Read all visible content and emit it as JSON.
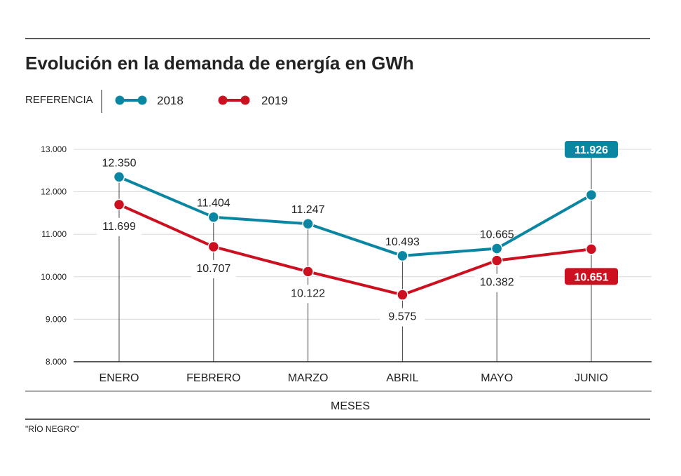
{
  "title": "Evolución en la demanda de energía en GWh",
  "legend_label": "REFERENCIA",
  "source": "\"RÍO NEGRO\"",
  "colors": {
    "2018": "#0a86a3",
    "2019": "#cc1020"
  },
  "chart_data": {
    "type": "line",
    "title": "Evolución en la demanda de energía en GWh",
    "xlabel": "MESES",
    "ylabel": "",
    "categories": [
      "ENERO",
      "FEBRERO",
      "MARZO",
      "ABRIL",
      "MAYO",
      "JUNIO"
    ],
    "ylim": [
      8000,
      13000
    ],
    "yticks": [
      8000,
      9000,
      10000,
      11000,
      12000,
      13000
    ],
    "ytick_labels": [
      "8.000",
      "9.000",
      "10.000",
      "11.000",
      "12.000",
      "13.000"
    ],
    "grid": true,
    "legend_position": "top-left",
    "series": [
      {
        "name": "2018",
        "color": "#0a86a3",
        "values": [
          12350,
          11404,
          11247,
          10493,
          10665,
          11926
        ],
        "labels": [
          "12.350",
          "11.404",
          "11.247",
          "10.493",
          "10.665",
          "11.926"
        ]
      },
      {
        "name": "2019",
        "color": "#cc1020",
        "values": [
          11699,
          10707,
          10122,
          9575,
          10382,
          10651
        ],
        "labels": [
          "11.699",
          "10.707",
          "10.122",
          "9.575",
          "10.382",
          "10.651"
        ]
      }
    ]
  }
}
